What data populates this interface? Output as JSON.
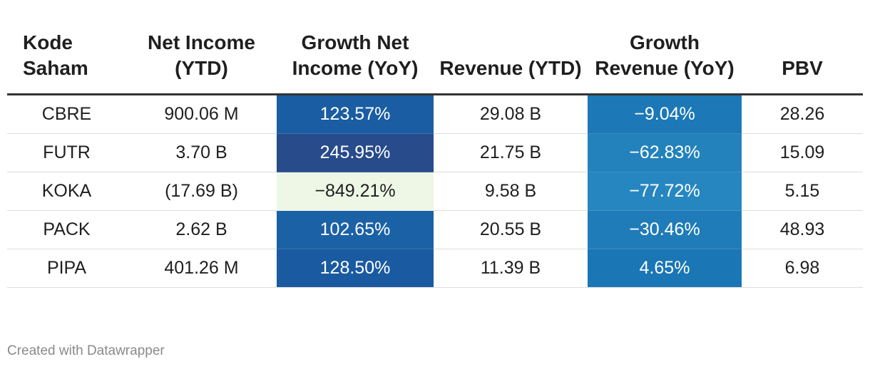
{
  "chart_data": {
    "type": "table",
    "columns": [
      "Kode Saham",
      "Net Income (YTD)",
      "Growth Net Income (YoY)",
      "Revenue (YTD)",
      "Growth Revenue (YoY)",
      "PBV"
    ],
    "rows": [
      {
        "kode": "CBRE",
        "net_income": "900.06 M",
        "growth_net_income": "123.57%",
        "growth_net_income_value": 123.57,
        "revenue": "29.08 B",
        "growth_revenue": "−9.04%",
        "growth_revenue_value": -9.04,
        "pbv": "28.26"
      },
      {
        "kode": "FUTR",
        "net_income": "3.70 B",
        "growth_net_income": "245.95%",
        "growth_net_income_value": 245.95,
        "revenue": "21.75 B",
        "growth_revenue": "−62.83%",
        "growth_revenue_value": -62.83,
        "pbv": "15.09"
      },
      {
        "kode": "KOKA",
        "net_income": "(17.69 B)",
        "growth_net_income": "−849.21%",
        "growth_net_income_value": -849.21,
        "revenue": "9.58 B",
        "growth_revenue": "−77.72%",
        "growth_revenue_value": -77.72,
        "pbv": "5.15"
      },
      {
        "kode": "PACK",
        "net_income": "2.62 B",
        "growth_net_income": "102.65%",
        "growth_net_income_value": 102.65,
        "revenue": "20.55 B",
        "growth_revenue": "−30.46%",
        "growth_revenue_value": -30.46,
        "pbv": "48.93"
      },
      {
        "kode": "PIPA",
        "net_income": "401.26 M",
        "growth_net_income": "128.50%",
        "growth_net_income_value": 128.5,
        "revenue": "11.39 B",
        "growth_revenue": "4.65%",
        "growth_revenue_value": 4.65,
        "pbv": "6.98"
      }
    ],
    "heat_colors": {
      "growth_net_income": [
        "#1a5da2",
        "#274b8b",
        "#eef7e6",
        "#1b61a6",
        "#1a5aa0"
      ],
      "growth_revenue": [
        "#1c78b6",
        "#2382bc",
        "#2686c0",
        "#1f7cb8",
        "#1a76b4"
      ]
    }
  },
  "footer": {
    "credit": "Created with Datawrapper"
  }
}
